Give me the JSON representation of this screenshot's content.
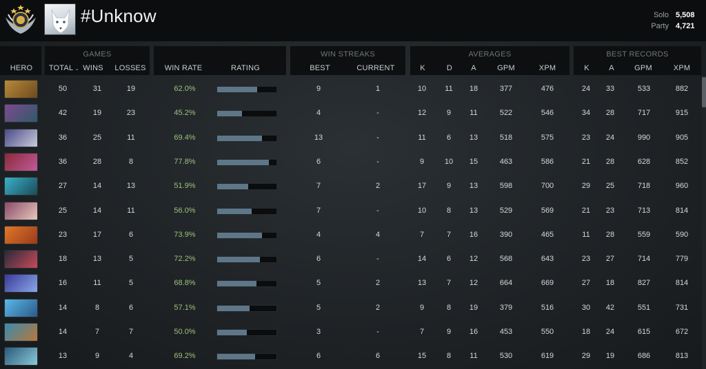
{
  "profile": {
    "name": "#Unknow",
    "rank_icon": "rank-medal-icon",
    "avatar_icon": "white-wolf-avatar",
    "mmr": [
      {
        "label": "Solo",
        "value": "5,508"
      },
      {
        "label": "Party",
        "value": "4,721"
      }
    ]
  },
  "groups": {
    "games": "GAMES",
    "win_streaks": "WIN STREAKS",
    "averages": "AVERAGES",
    "best_records": "BEST RECORDS"
  },
  "headers": {
    "hero": "HERO",
    "total": "TOTAL",
    "wins": "WINS",
    "losses": "LOSSES",
    "win_rate": "WIN RATE",
    "rating": "RATING",
    "best": "BEST",
    "current": "CURRENT",
    "avg_k": "K",
    "avg_d": "D",
    "avg_a": "A",
    "avg_gpm": "GPM",
    "avg_xpm": "XPM",
    "rec_k": "K",
    "rec_a": "A",
    "rec_gpm": "GPM",
    "rec_xpm": "XPM"
  },
  "colors": {
    "win_rate": "#9ec07c",
    "rating_bar": "#5d7788",
    "header_bg": "#0d0f10"
  },
  "rows": [
    {
      "hero_colors": [
        "#b88a3a",
        "#6e4a1e"
      ],
      "total": "50",
      "wins": "31",
      "losses": "19",
      "win_rate": "62.0%",
      "rating": 0.68,
      "best": "9",
      "current": "1",
      "k": "10",
      "d": "11",
      "a": "18",
      "gpm": "377",
      "xpm": "476",
      "rk": "24",
      "ra": "33",
      "rgpm": "533",
      "rxpm": "882"
    },
    {
      "hero_colors": [
        "#7d4a8e",
        "#2f5a6a"
      ],
      "total": "42",
      "wins": "19",
      "losses": "23",
      "win_rate": "45.2%",
      "rating": 0.42,
      "best": "4",
      "current": "-",
      "k": "12",
      "d": "9",
      "a": "11",
      "gpm": "522",
      "xpm": "546",
      "rk": "34",
      "ra": "28",
      "rgpm": "717",
      "rxpm": "915"
    },
    {
      "hero_colors": [
        "#4a4a8a",
        "#c8ccd8"
      ],
      "total": "36",
      "wins": "25",
      "losses": "11",
      "win_rate": "69.4%",
      "rating": 0.76,
      "best": "13",
      "current": "-",
      "k": "11",
      "d": "6",
      "a": "13",
      "gpm": "518",
      "xpm": "575",
      "rk": "23",
      "ra": "24",
      "rgpm": "990",
      "rxpm": "905"
    },
    {
      "hero_colors": [
        "#8a2a3a",
        "#c05a9a"
      ],
      "total": "36",
      "wins": "28",
      "losses": "8",
      "win_rate": "77.8%",
      "rating": 0.87,
      "best": "6",
      "current": "-",
      "k": "9",
      "d": "10",
      "a": "15",
      "gpm": "463",
      "xpm": "586",
      "rk": "21",
      "ra": "28",
      "rgpm": "628",
      "rxpm": "852"
    },
    {
      "hero_colors": [
        "#3ab0c8",
        "#1a4a5a"
      ],
      "total": "27",
      "wins": "14",
      "losses": "13",
      "win_rate": "51.9%",
      "rating": 0.52,
      "best": "7",
      "current": "2",
      "k": "17",
      "d": "9",
      "a": "13",
      "gpm": "598",
      "xpm": "700",
      "rk": "29",
      "ra": "25",
      "rgpm": "718",
      "rxpm": "960"
    },
    {
      "hero_colors": [
        "#8a4a6a",
        "#e8c8b8"
      ],
      "total": "25",
      "wins": "14",
      "losses": "11",
      "win_rate": "56.0%",
      "rating": 0.58,
      "best": "7",
      "current": "-",
      "k": "10",
      "d": "8",
      "a": "13",
      "gpm": "529",
      "xpm": "569",
      "rk": "21",
      "ra": "23",
      "rgpm": "713",
      "rxpm": "814"
    },
    {
      "hero_colors": [
        "#e0782a",
        "#9a3a1a"
      ],
      "total": "23",
      "wins": "17",
      "losses": "6",
      "win_rate": "73.9%",
      "rating": 0.76,
      "best": "4",
      "current": "4",
      "k": "7",
      "d": "7",
      "a": "16",
      "gpm": "390",
      "xpm": "465",
      "rk": "11",
      "ra": "28",
      "rgpm": "559",
      "rxpm": "590"
    },
    {
      "hero_colors": [
        "#2a2a3a",
        "#c84a5a"
      ],
      "total": "18",
      "wins": "13",
      "losses": "5",
      "win_rate": "72.2%",
      "rating": 0.72,
      "best": "6",
      "current": "-",
      "k": "14",
      "d": "6",
      "a": "12",
      "gpm": "568",
      "xpm": "643",
      "rk": "23",
      "ra": "27",
      "rgpm": "714",
      "rxpm": "779"
    },
    {
      "hero_colors": [
        "#3a3a9a",
        "#8aa8e8"
      ],
      "total": "16",
      "wins": "11",
      "losses": "5",
      "win_rate": "68.8%",
      "rating": 0.66,
      "best": "5",
      "current": "2",
      "k": "13",
      "d": "7",
      "a": "12",
      "gpm": "664",
      "xpm": "669",
      "rk": "27",
      "ra": "18",
      "rgpm": "827",
      "rxpm": "814"
    },
    {
      "hero_colors": [
        "#5ab8e8",
        "#2a5a8a"
      ],
      "total": "14",
      "wins": "8",
      "losses": "6",
      "win_rate": "57.1%",
      "rating": 0.55,
      "best": "5",
      "current": "2",
      "k": "9",
      "d": "8",
      "a": "19",
      "gpm": "379",
      "xpm": "516",
      "rk": "30",
      "ra": "42",
      "rgpm": "551",
      "rxpm": "731"
    },
    {
      "hero_colors": [
        "#3a8ab0",
        "#b8783a"
      ],
      "total": "14",
      "wins": "7",
      "losses": "7",
      "win_rate": "50.0%",
      "rating": 0.5,
      "best": "3",
      "current": "-",
      "k": "7",
      "d": "9",
      "a": "16",
      "gpm": "453",
      "xpm": "550",
      "rk": "18",
      "ra": "24",
      "rgpm": "615",
      "rxpm": "672"
    },
    {
      "hero_colors": [
        "#2a5a7a",
        "#8ac8d8"
      ],
      "total": "13",
      "wins": "9",
      "losses": "4",
      "win_rate": "69.2%",
      "rating": 0.64,
      "best": "6",
      "current": "6",
      "k": "15",
      "d": "8",
      "a": "11",
      "gpm": "530",
      "xpm": "619",
      "rk": "29",
      "ra": "19",
      "rgpm": "686",
      "rxpm": "813"
    }
  ]
}
